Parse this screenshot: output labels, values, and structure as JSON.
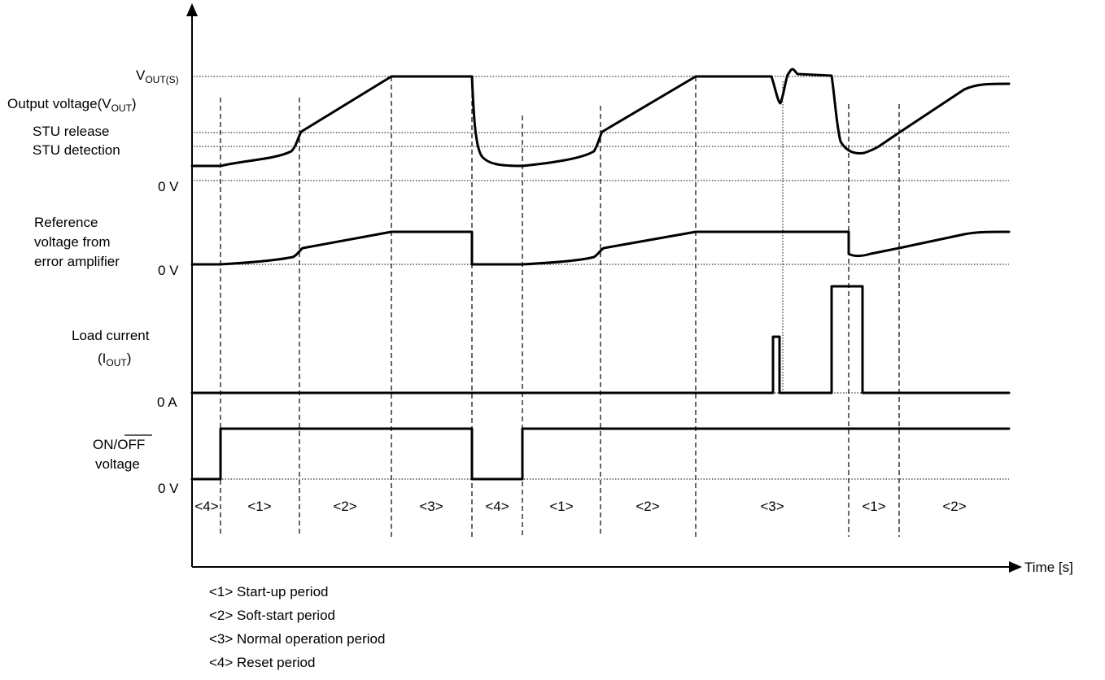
{
  "labels": {
    "vouts_main": "V",
    "vouts_sub": "OUT(S)",
    "output_voltage_pre": "Output voltage(V",
    "output_voltage_sub": "OUT",
    "output_voltage_post": ")",
    "stu_release": "STU release",
    "stu_detection": "STU detection",
    "zero_v_1": "0 V",
    "reference_1": "Reference",
    "reference_2": "voltage from",
    "reference_3": "error amplifier",
    "zero_v_2": "0 V",
    "load_current": "Load current",
    "iout_pre": "(I",
    "iout_sub": "OUT",
    "iout_post": ")",
    "zero_a": "0 A",
    "on_text": "ON/",
    "off_text": "OFF",
    "voltage": "voltage",
    "zero_v_3": "0 V",
    "time_axis": "Time [s]"
  },
  "periods": [
    "<4>",
    "<1>",
    "<2>",
    "<3>",
    "<4>",
    "<1>",
    "<2>",
    "<3>",
    "<1>",
    "<2>"
  ],
  "legend": [
    "<1> Start-up period",
    "<2> Soft-start period",
    "<3> Normal operation period",
    "<4> Reset period"
  ],
  "waveforms": [
    "output-voltage",
    "reference-voltage",
    "load-current",
    "on-off-voltage"
  ]
}
